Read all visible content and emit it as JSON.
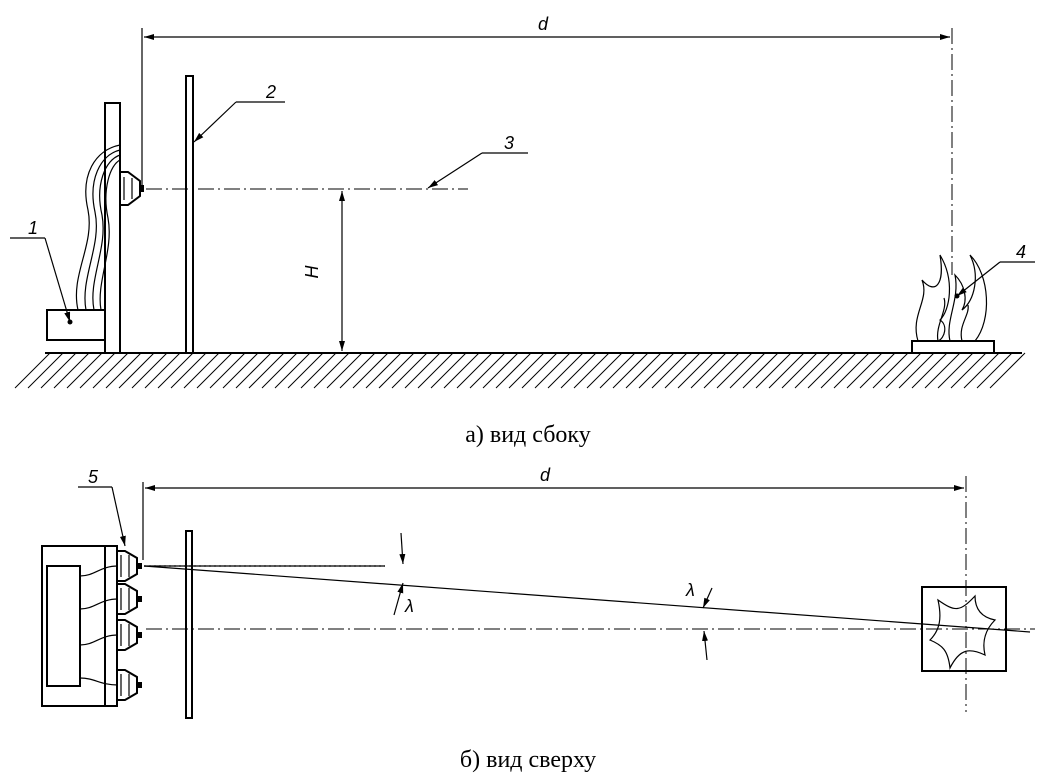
{
  "labels": {
    "top_distance": "d",
    "bottom_distance": "d",
    "height": "H",
    "angle_upper": "λ",
    "angle_lower": "λ"
  },
  "callouts": [
    "1",
    "2",
    "3",
    "4",
    "5"
  ],
  "captions": {
    "side_view": "а) вид сбоку",
    "top_view": "б) вид сверху"
  }
}
